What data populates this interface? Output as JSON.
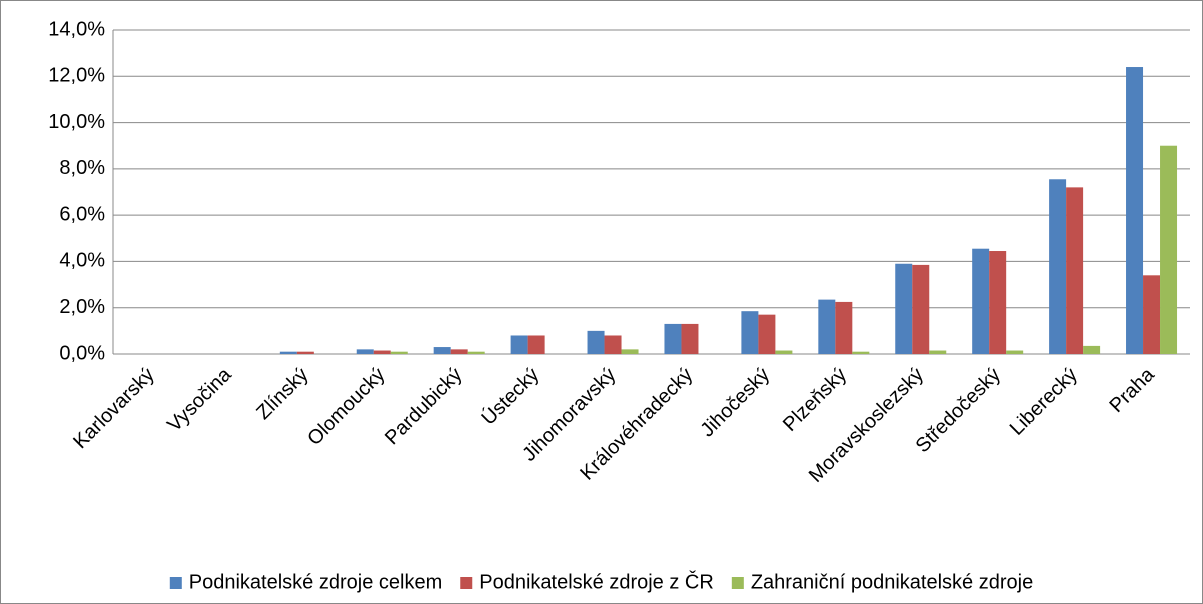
{
  "chart_data": {
    "type": "bar",
    "categories": [
      "Karlovarský",
      "Vysočina",
      "Zlínský",
      "Olomoucký",
      "Pardubický",
      "Ústecký",
      "Jihomoravský",
      "Královéhradecký",
      "Jihočeský",
      "Plzeňský",
      "Moravskoslezský",
      "Středočeský",
      "Liberecký",
      "Praha"
    ],
    "series": [
      {
        "name": "Podnikatelské zdroje celkem",
        "color": "#4f81bd",
        "values": [
          0,
          0,
          0.1,
          0.2,
          0.3,
          0.8,
          1.0,
          1.3,
          1.85,
          2.35,
          3.9,
          4.55,
          7.55,
          12.4
        ]
      },
      {
        "name": "Podnikatelské zdroje z ČR",
        "color": "#c0504d",
        "values": [
          0,
          0,
          0.1,
          0.15,
          0.2,
          0.8,
          0.8,
          1.3,
          1.7,
          2.25,
          3.85,
          4.45,
          7.2,
          3.4
        ]
      },
      {
        "name": "Zahraniční podnikatelské zdroje",
        "color": "#9bbb59",
        "values": [
          0,
          0,
          0,
          0.1,
          0.1,
          0,
          0.2,
          0,
          0.15,
          0.1,
          0.15,
          0.15,
          0.35,
          9.0
        ]
      }
    ],
    "ylim": [
      0,
      14
    ],
    "yticks": [
      {
        "value": 0,
        "label": "0,0%"
      },
      {
        "value": 2,
        "label": "2,0%"
      },
      {
        "value": 4,
        "label": "4,0%"
      },
      {
        "value": 6,
        "label": "6,0%"
      },
      {
        "value": 8,
        "label": "8,0%"
      },
      {
        "value": 10,
        "label": "10,0%"
      },
      {
        "value": 12,
        "label": "12,0%"
      },
      {
        "value": 14,
        "label": "14,0%"
      }
    ],
    "grid": true,
    "legend": "bottom"
  }
}
